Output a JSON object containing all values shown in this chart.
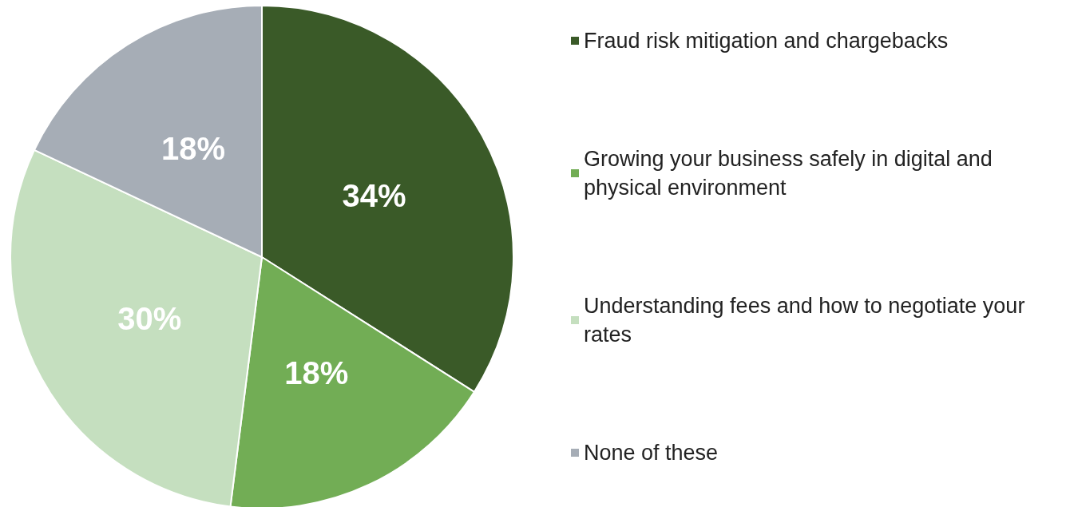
{
  "chart_data": {
    "type": "pie",
    "categories": [
      "Fraud risk mitigation and chargebacks",
      "Growing your business safely in digital and physical environment",
      "Understanding fees and how to negotiate your rates",
      "None of these"
    ],
    "values": [
      34,
      18,
      30,
      18
    ],
    "colors": [
      "#3a5a28",
      "#72ad55",
      "#c5dfbf",
      "#a6adb6"
    ],
    "value_labels": [
      "34%",
      "18%",
      "30%",
      "18%"
    ],
    "legend": "right"
  }
}
